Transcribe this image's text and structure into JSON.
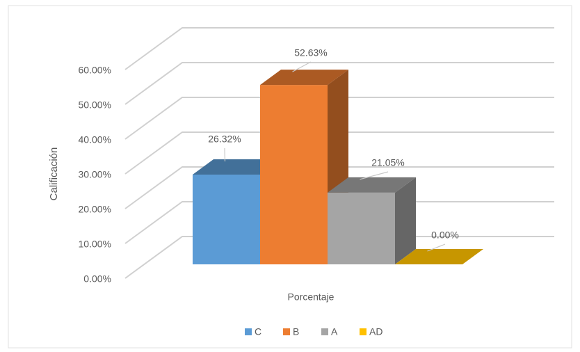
{
  "chart_data": {
    "type": "bar3d",
    "y_label": "Calificación",
    "categories": [
      "Porcentaje"
    ],
    "series": [
      {
        "name": "C",
        "color": "#5b9bd5",
        "values": [
          26.32
        ],
        "value_labels": [
          "26.32%"
        ]
      },
      {
        "name": "B",
        "color": "#ed7d31",
        "values": [
          52.63
        ],
        "value_labels": [
          "52.63%"
        ]
      },
      {
        "name": "A",
        "color": "#a5a5a5",
        "values": [
          21.05
        ],
        "value_labels": [
          "21.05%"
        ]
      },
      {
        "name": "AD",
        "color": "#ffc000",
        "values": [
          0
        ],
        "value_labels": [
          "0.00%"
        ]
      }
    ],
    "ylim": [
      0,
      60
    ],
    "yticks": [
      {
        "value": 0,
        "label": "0.00%"
      },
      {
        "value": 10,
        "label": "10.00%"
      },
      {
        "value": 20,
        "label": "20.00%"
      },
      {
        "value": 30,
        "label": "30.00%"
      },
      {
        "value": 40,
        "label": "40.00%"
      },
      {
        "value": 50,
        "label": "50.00%"
      },
      {
        "value": 60,
        "label": "60.00%"
      }
    ],
    "grid": true,
    "legend": "bottom"
  }
}
